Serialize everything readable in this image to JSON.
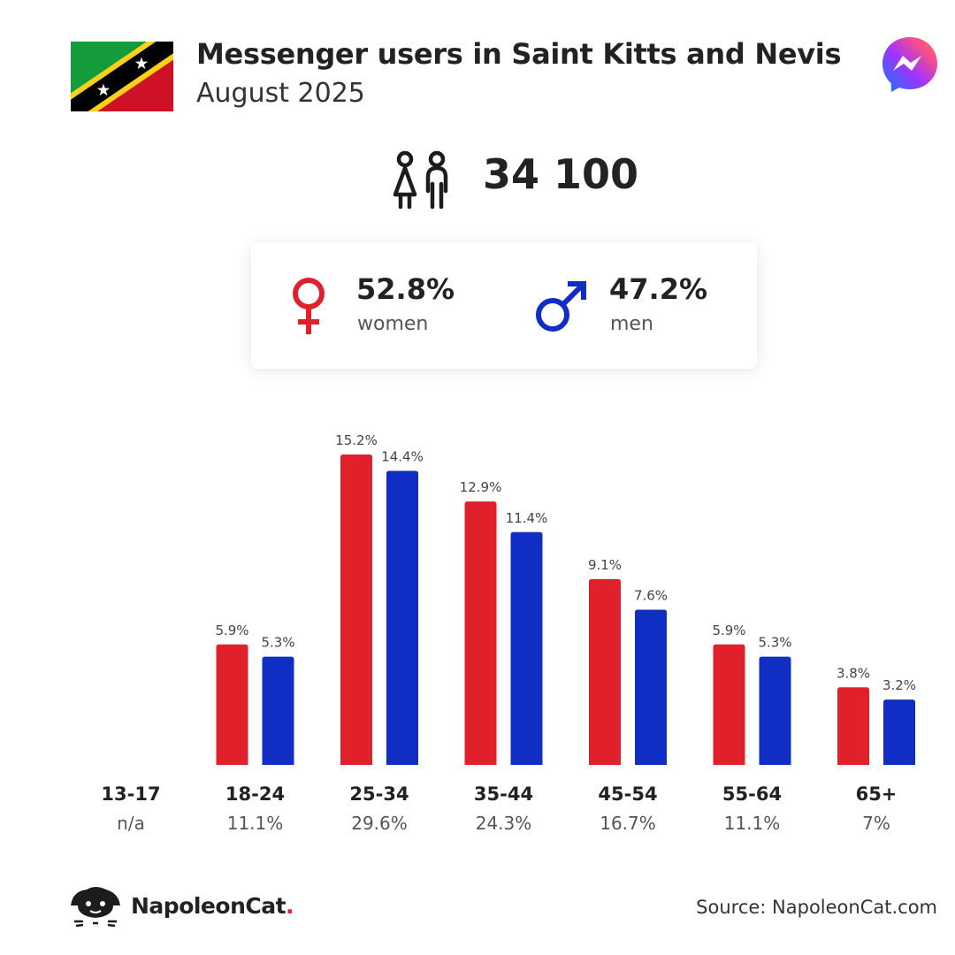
{
  "header": {
    "title": "Messenger users in Saint Kitts and Nevis",
    "subtitle": "August 2025",
    "flag_icon": "saint-kitts-and-nevis-flag-icon",
    "app_icon": "messenger-icon"
  },
  "total": {
    "icon": "people-icon",
    "value": "34 100"
  },
  "gender": {
    "women_pct": "52.8%",
    "women_label": "women",
    "men_pct": "47.2%",
    "men_label": "men",
    "women_color": "#e0202a",
    "men_color": "#102ec4"
  },
  "chart_data": {
    "type": "bar",
    "categories": [
      "13-17",
      "18-24",
      "25-34",
      "35-44",
      "45-54",
      "55-64",
      "65+"
    ],
    "category_totals": [
      "n/a",
      "11.1%",
      "29.6%",
      "24.3%",
      "16.7%",
      "11.1%",
      "7%"
    ],
    "series": [
      {
        "values": [
          null,
          5.9,
          15.2,
          12.9,
          9.1,
          5.9,
          3.8
        ],
        "labels": [
          "",
          "5.9%",
          "15.2%",
          "12.9%",
          "9.1%",
          "5.9%",
          "3.8%"
        ],
        "color": "#e0202a"
      },
      {
        "values": [
          null,
          5.3,
          14.4,
          11.4,
          7.6,
          5.3,
          3.2
        ],
        "labels": [
          "",
          "5.3%",
          "14.4%",
          "11.4%",
          "7.6%",
          "5.3%",
          "3.2%"
        ],
        "color": "#102ec4"
      }
    ],
    "title": "",
    "xlabel": "",
    "ylabel": "",
    "ylim": [
      0,
      15.2
    ],
    "grid": false
  },
  "footer": {
    "brand_name": "NapoleonCat",
    "brand_dot": ".",
    "brand_icon": "napoleoncat-logo-icon",
    "source": "Source: NapoleonCat.com"
  }
}
